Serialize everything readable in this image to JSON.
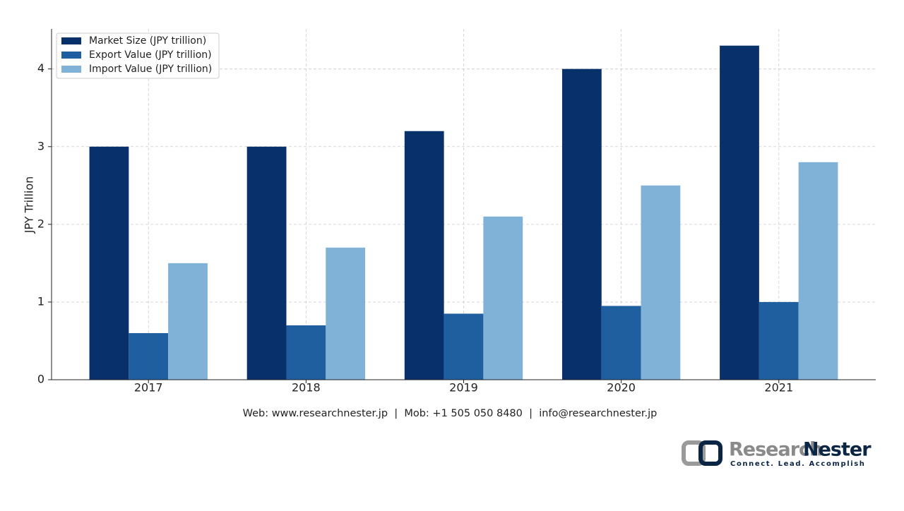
{
  "chart_data": {
    "type": "bar",
    "y_label": "JPY Trillion",
    "categories": [
      "2017",
      "2018",
      "2019",
      "2020",
      "2021"
    ],
    "series": [
      {
        "name": "Market Size (JPY trillion)",
        "color": "#08306b",
        "values": [
          3,
          3,
          3.2,
          4,
          4.3
        ]
      },
      {
        "name": "Export Value (JPY trillion)",
        "color": "#1f5fa0",
        "values": [
          0.6,
          0.7,
          0.85,
          0.95,
          1.0
        ]
      },
      {
        "name": "Import Value (JPY trillion)",
        "color": "#7fb2d6",
        "values": [
          1.5,
          1.7,
          2.1,
          2.5,
          2.8
        ]
      }
    ],
    "ylim": [
      0,
      4.515
    ],
    "yticks": [
      0,
      1,
      2,
      3,
      4
    ],
    "grid": true,
    "legend": "upper-left"
  },
  "footer": {
    "contact": "Web: www.researchnester.jp  |  Mob: +1 505 050 8480  |  info@researchnester.jp"
  },
  "logo": {
    "name_light": "Research",
    "name_dark": "Nester",
    "tagline": "Connect. Lead. Accomplish"
  }
}
